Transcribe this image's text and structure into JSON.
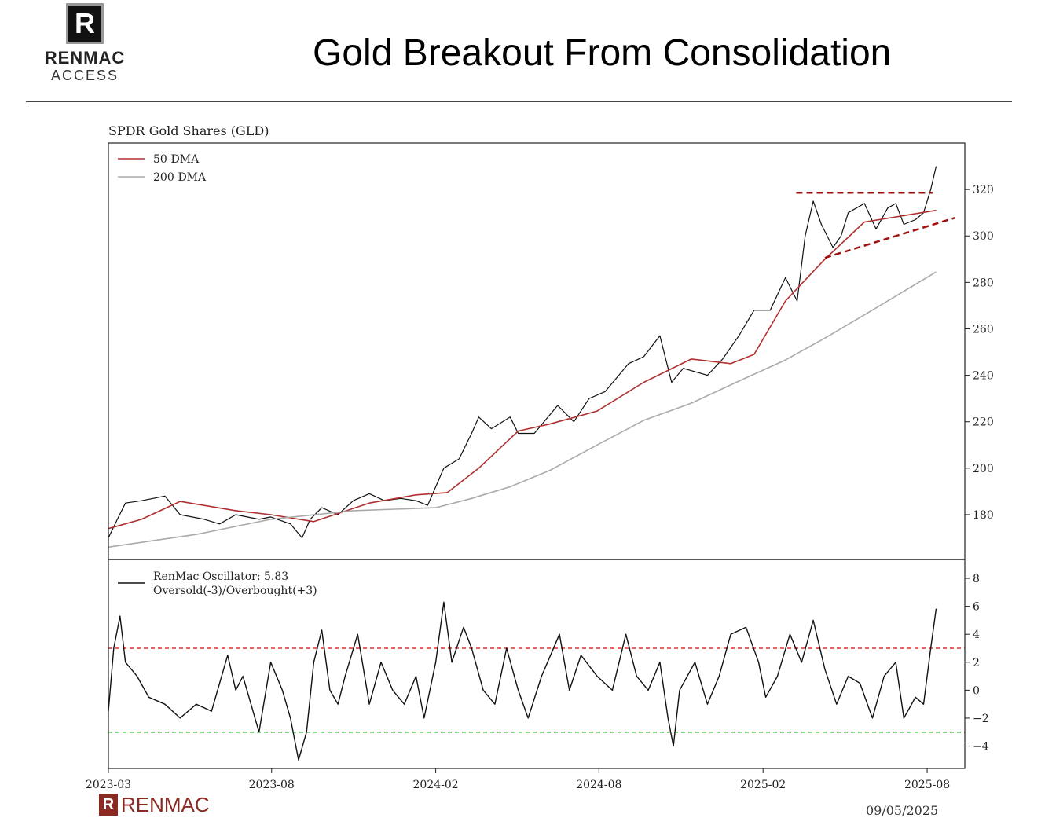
{
  "header": {
    "logo_mark": "R",
    "logo_line1": "RENMAC",
    "logo_line2": "ACCESS",
    "title": "Gold Breakout From Consolidation"
  },
  "footer": {
    "logo_mark": "R",
    "logo_text": "RENMAC",
    "date": "09/05/2025"
  },
  "colors": {
    "price": "#111111",
    "dma50": "#b03030",
    "dma200": "#aaaaaa",
    "overbought": "#e03030",
    "oversold": "#30a030",
    "trendline": "#a01010"
  },
  "chart_data": [
    {
      "type": "line",
      "title": "SPDR Gold Shares (GLD)",
      "x_unit": "days since 2023-08-01",
      "xlim": [
        -182,
        773
      ],
      "ylim": [
        160.7,
        340
      ],
      "yticks": [
        180,
        200,
        220,
        240,
        260,
        280,
        300,
        320
      ],
      "xticks": [
        {
          "v": -182,
          "label": "2023-03"
        },
        {
          "v": 0,
          "label": "2023-08"
        },
        {
          "v": 183,
          "label": "2024-02"
        },
        {
          "v": 365,
          "label": "2024-08"
        },
        {
          "v": 548,
          "label": "2025-02"
        },
        {
          "v": 731,
          "label": "2025-08"
        }
      ],
      "legend": [
        "50-DMA",
        "200-DMA"
      ],
      "legend_position": "top-left",
      "series": [
        {
          "name": "GLD",
          "x": [
            -182,
            -172,
            -163,
            -145,
            -119,
            -102,
            -75,
            -58,
            -40,
            -14,
            -1,
            21,
            34,
            43,
            56,
            74,
            91,
            109,
            126,
            144,
            161,
            174,
            183,
            192,
            209,
            223,
            231,
            245,
            266,
            275,
            293,
            319,
            337,
            354,
            372,
            398,
            415,
            433,
            446,
            459,
            486,
            503,
            521,
            538,
            556,
            573,
            586,
            595,
            604,
            613,
            626,
            635,
            643,
            661,
            674,
            687,
            696,
            705,
            718,
            727,
            735,
            741
          ],
          "y": [
            170,
            178,
            185,
            186,
            188,
            180,
            178,
            176,
            180,
            178,
            179,
            176,
            170,
            178,
            183,
            180,
            186,
            189,
            186,
            187,
            186,
            184,
            192,
            200,
            204,
            215,
            222,
            217,
            222,
            215,
            215,
            227,
            220,
            230,
            233,
            245,
            248,
            257,
            237,
            243,
            240,
            247,
            257,
            268,
            268,
            282,
            272,
            300,
            315,
            305,
            295,
            300,
            310,
            314,
            303,
            312,
            314,
            305,
            307,
            310,
            320,
            330
          ]
        },
        {
          "name": "50-DMA",
          "x": [
            -182,
            -145,
            -102,
            -40,
            -1,
            47,
            109,
            161,
            196,
            231,
            275,
            310,
            363,
            415,
            468,
            512,
            538,
            573,
            617,
            661,
            741
          ],
          "y": [
            174,
            178,
            185.7,
            181.7,
            180,
            177,
            185,
            188.5,
            189.5,
            200,
            216,
            219,
            224.6,
            237,
            247,
            245,
            249,
            272,
            290,
            306,
            311
          ]
        },
        {
          "name": "200-DMA",
          "x": [
            -182,
            -84,
            -1,
            91,
            183,
            223,
            266,
            310,
            363,
            415,
            468,
            521,
            573,
            617,
            661,
            741
          ],
          "y": [
            166,
            171.5,
            178,
            181.7,
            183,
            187,
            192,
            199,
            210,
            220.6,
            228,
            237.5,
            246.6,
            256,
            266,
            284.5
          ]
        }
      ],
      "annotations": [
        {
          "type": "dashed-resistance",
          "x": [
            585,
            737
          ],
          "y": [
            318.6,
            318.6
          ]
        },
        {
          "type": "dashed-rising-support",
          "x": [
            617,
            762
          ],
          "y": [
            290.6,
            307.8
          ]
        }
      ]
    },
    {
      "type": "line",
      "x_unit": "days since 2023-08-01",
      "xlim": [
        -182,
        773
      ],
      "ylim": [
        -5.6,
        9.35
      ],
      "yticks": [
        -4,
        -2,
        0,
        2,
        4,
        6,
        8
      ],
      "legend": [
        "RenMac Oscillator: 5.83",
        "Oversold(-3)/Overbought(+3)"
      ],
      "legend_position": "top-left",
      "thresholds": {
        "overbought": 3,
        "oversold": -3
      },
      "series": [
        {
          "name": "RenMac Oscillator",
          "x": [
            -182,
            -176,
            -169,
            -163,
            -150,
            -137,
            -119,
            -102,
            -84,
            -67,
            -49,
            -40,
            -32,
            -23,
            -14,
            -1,
            12,
            21,
            30,
            39,
            47,
            56,
            65,
            74,
            82,
            96,
            109,
            122,
            135,
            148,
            161,
            170,
            183,
            192,
            201,
            214,
            223,
            236,
            249,
            262,
            275,
            286,
            301,
            321,
            332,
            345,
            363,
            380,
            395,
            407,
            420,
            433,
            442,
            448,
            455,
            472,
            486,
            499,
            512,
            529,
            543,
            551,
            564,
            578,
            591,
            604,
            617,
            630,
            643,
            656,
            670,
            683,
            696,
            705,
            718,
            727,
            735,
            741
          ],
          "y": [
            -1.5,
            3,
            5.3,
            2,
            1,
            -0.5,
            -1,
            -2,
            -1,
            -1.5,
            2.5,
            0,
            1,
            -1,
            -3,
            2,
            0,
            -2,
            -5,
            -3,
            2,
            4.3,
            0,
            -1,
            1,
            4,
            -1,
            2,
            0,
            -1,
            1,
            -2,
            2,
            6.3,
            2,
            4.5,
            3,
            0,
            -1,
            3,
            0,
            -2,
            1,
            4,
            0,
            2.5,
            1,
            0,
            4,
            1,
            0,
            2,
            -2,
            -4,
            0,
            2,
            -1,
            1,
            4,
            4.5,
            2,
            -0.5,
            1,
            4,
            2,
            5,
            1.5,
            -1,
            1,
            0.5,
            -2,
            1,
            2,
            -2,
            -0.5,
            -1,
            3,
            5.83
          ]
        }
      ]
    }
  ]
}
